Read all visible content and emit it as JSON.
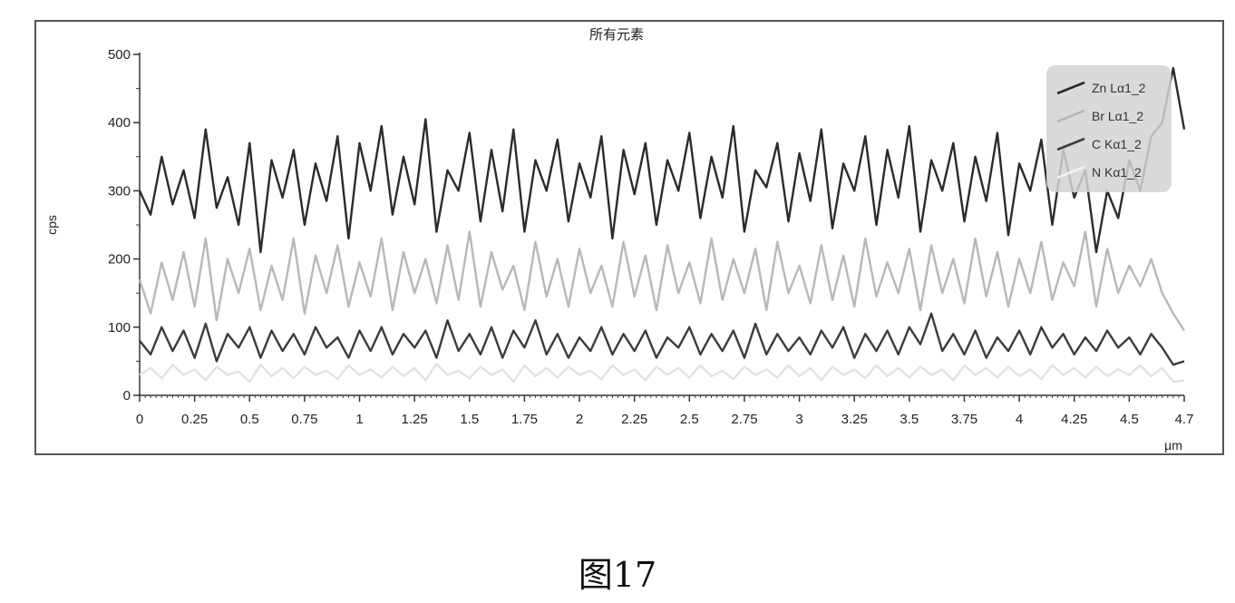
{
  "chart_data": {
    "type": "line",
    "title": "所有元素",
    "xlabel": "µm",
    "ylabel": "cps",
    "xlim": [
      0,
      4.75
    ],
    "ylim": [
      0,
      500
    ],
    "xticks": [
      "0",
      "0.25",
      "0.5",
      "0.75",
      "1",
      "1.25",
      "1.5",
      "1.75",
      "2",
      "2.25",
      "2.5",
      "2.75",
      "3",
      "3.25",
      "3.5",
      "3.75",
      "4",
      "4.25",
      "4.5",
      "4.7"
    ],
    "yticks": [
      "0",
      "100",
      "200",
      "300",
      "400",
      "500"
    ],
    "grid": false,
    "legend_position": "top-right",
    "series": [
      {
        "name": "Zn Lα1_2",
        "color": "#2b2b2b",
        "x": [
          0,
          0.05,
          0.1,
          0.15,
          0.2,
          0.25,
          0.3,
          0.35,
          0.4,
          0.45,
          0.5,
          0.55,
          0.6,
          0.65,
          0.7,
          0.75,
          0.8,
          0.85,
          0.9,
          0.95,
          1,
          1.05,
          1.1,
          1.15,
          1.2,
          1.25,
          1.3,
          1.35,
          1.4,
          1.45,
          1.5,
          1.55,
          1.6,
          1.65,
          1.7,
          1.75,
          1.8,
          1.85,
          1.9,
          1.95,
          2,
          2.05,
          2.1,
          2.15,
          2.2,
          2.25,
          2.3,
          2.35,
          2.4,
          2.45,
          2.5,
          2.55,
          2.6,
          2.65,
          2.7,
          2.75,
          2.8,
          2.85,
          2.9,
          2.95,
          3,
          3.05,
          3.1,
          3.15,
          3.2,
          3.25,
          3.3,
          3.35,
          3.4,
          3.45,
          3.5,
          3.55,
          3.6,
          3.65,
          3.7,
          3.75,
          3.8,
          3.85,
          3.9,
          3.95,
          4,
          4.05,
          4.1,
          4.15,
          4.2,
          4.25,
          4.3,
          4.35,
          4.4,
          4.45,
          4.5,
          4.55,
          4.6,
          4.65,
          4.7,
          4.75
        ],
        "values": [
          300,
          265,
          350,
          280,
          330,
          260,
          390,
          275,
          320,
          250,
          370,
          210,
          345,
          290,
          360,
          250,
          340,
          285,
          380,
          230,
          370,
          300,
          395,
          265,
          350,
          280,
          405,
          240,
          330,
          300,
          385,
          255,
          360,
          270,
          390,
          240,
          345,
          300,
          375,
          255,
          340,
          290,
          380,
          230,
          360,
          295,
          370,
          250,
          345,
          300,
          385,
          260,
          350,
          290,
          395,
          240,
          330,
          305,
          370,
          255,
          355,
          285,
          390,
          245,
          340,
          300,
          380,
          250,
          360,
          290,
          395,
          240,
          345,
          300,
          370,
          255,
          350,
          285,
          385,
          235,
          340,
          300,
          375,
          250,
          360,
          290,
          330,
          210,
          300,
          260,
          345,
          300,
          380,
          400,
          480,
          390
        ]
      },
      {
        "name": "Br Lα1_2",
        "color": "#b8b8b8",
        "x": [
          0,
          0.05,
          0.1,
          0.15,
          0.2,
          0.25,
          0.3,
          0.35,
          0.4,
          0.45,
          0.5,
          0.55,
          0.6,
          0.65,
          0.7,
          0.75,
          0.8,
          0.85,
          0.9,
          0.95,
          1,
          1.05,
          1.1,
          1.15,
          1.2,
          1.25,
          1.3,
          1.35,
          1.4,
          1.45,
          1.5,
          1.55,
          1.6,
          1.65,
          1.7,
          1.75,
          1.8,
          1.85,
          1.9,
          1.95,
          2,
          2.05,
          2.1,
          2.15,
          2.2,
          2.25,
          2.3,
          2.35,
          2.4,
          2.45,
          2.5,
          2.55,
          2.6,
          2.65,
          2.7,
          2.75,
          2.8,
          2.85,
          2.9,
          2.95,
          3,
          3.05,
          3.1,
          3.15,
          3.2,
          3.25,
          3.3,
          3.35,
          3.4,
          3.45,
          3.5,
          3.55,
          3.6,
          3.65,
          3.7,
          3.75,
          3.8,
          3.85,
          3.9,
          3.95,
          4,
          4.05,
          4.1,
          4.15,
          4.2,
          4.25,
          4.3,
          4.35,
          4.4,
          4.45,
          4.5,
          4.55,
          4.6,
          4.65,
          4.7,
          4.75
        ],
        "values": [
          170,
          120,
          195,
          140,
          210,
          130,
          230,
          110,
          200,
          150,
          215,
          125,
          190,
          140,
          230,
          120,
          205,
          150,
          220,
          130,
          195,
          145,
          230,
          125,
          210,
          150,
          200,
          135,
          220,
          140,
          240,
          130,
          210,
          155,
          190,
          125,
          225,
          145,
          200,
          130,
          215,
          150,
          190,
          130,
          225,
          145,
          205,
          125,
          220,
          150,
          195,
          135,
          230,
          140,
          200,
          150,
          215,
          125,
          225,
          150,
          190,
          135,
          220,
          140,
          205,
          130,
          230,
          145,
          195,
          150,
          215,
          125,
          220,
          150,
          200,
          135,
          230,
          145,
          210,
          130,
          200,
          150,
          225,
          140,
          195,
          160,
          240,
          130,
          215,
          150,
          190,
          160,
          200,
          150,
          120,
          95
        ]
      },
      {
        "name": "C Kα1_2",
        "color": "#3c3c3c",
        "x": [
          0,
          0.05,
          0.1,
          0.15,
          0.2,
          0.25,
          0.3,
          0.35,
          0.4,
          0.45,
          0.5,
          0.55,
          0.6,
          0.65,
          0.7,
          0.75,
          0.8,
          0.85,
          0.9,
          0.95,
          1,
          1.05,
          1.1,
          1.15,
          1.2,
          1.25,
          1.3,
          1.35,
          1.4,
          1.45,
          1.5,
          1.55,
          1.6,
          1.65,
          1.7,
          1.75,
          1.8,
          1.85,
          1.9,
          1.95,
          2,
          2.05,
          2.1,
          2.15,
          2.2,
          2.25,
          2.3,
          2.35,
          2.4,
          2.45,
          2.5,
          2.55,
          2.6,
          2.65,
          2.7,
          2.75,
          2.8,
          2.85,
          2.9,
          2.95,
          3,
          3.05,
          3.1,
          3.15,
          3.2,
          3.25,
          3.3,
          3.35,
          3.4,
          3.45,
          3.5,
          3.55,
          3.6,
          3.65,
          3.7,
          3.75,
          3.8,
          3.85,
          3.9,
          3.95,
          4,
          4.05,
          4.1,
          4.15,
          4.2,
          4.25,
          4.3,
          4.35,
          4.4,
          4.45,
          4.5,
          4.55,
          4.6,
          4.65,
          4.7,
          4.75
        ],
        "values": [
          80,
          60,
          100,
          65,
          95,
          55,
          105,
          50,
          90,
          70,
          100,
          55,
          95,
          65,
          90,
          60,
          100,
          70,
          85,
          55,
          95,
          65,
          100,
          60,
          90,
          70,
          95,
          55,
          110,
          65,
          90,
          60,
          100,
          55,
          95,
          70,
          110,
          60,
          90,
          55,
          85,
          65,
          100,
          60,
          90,
          65,
          95,
          55,
          85,
          70,
          100,
          60,
          90,
          65,
          95,
          55,
          105,
          60,
          90,
          65,
          85,
          60,
          95,
          70,
          100,
          55,
          90,
          65,
          95,
          60,
          100,
          75,
          120,
          65,
          90,
          60,
          95,
          55,
          85,
          65,
          95,
          60,
          100,
          70,
          90,
          60,
          85,
          65,
          95,
          70,
          85,
          60,
          90,
          70,
          45,
          50
        ]
      },
      {
        "name": "N Kα1_2",
        "color": "#e2e2e2",
        "x": [
          0,
          0.05,
          0.1,
          0.15,
          0.2,
          0.25,
          0.3,
          0.35,
          0.4,
          0.45,
          0.5,
          0.55,
          0.6,
          0.65,
          0.7,
          0.75,
          0.8,
          0.85,
          0.9,
          0.95,
          1,
          1.05,
          1.1,
          1.15,
          1.2,
          1.25,
          1.3,
          1.35,
          1.4,
          1.45,
          1.5,
          1.55,
          1.6,
          1.65,
          1.7,
          1.75,
          1.8,
          1.85,
          1.9,
          1.95,
          2,
          2.05,
          2.1,
          2.15,
          2.2,
          2.25,
          2.3,
          2.35,
          2.4,
          2.45,
          2.5,
          2.55,
          2.6,
          2.65,
          2.7,
          2.75,
          2.8,
          2.85,
          2.9,
          2.95,
          3,
          3.05,
          3.1,
          3.15,
          3.2,
          3.25,
          3.3,
          3.35,
          3.4,
          3.45,
          3.5,
          3.55,
          3.6,
          3.65,
          3.7,
          3.75,
          3.8,
          3.85,
          3.9,
          3.95,
          4,
          4.05,
          4.1,
          4.15,
          4.2,
          4.25,
          4.3,
          4.35,
          4.4,
          4.45,
          4.5,
          4.55,
          4.6,
          4.65,
          4.7,
          4.75
        ],
        "values": [
          30,
          40,
          25,
          45,
          30,
          38,
          22,
          42,
          30,
          35,
          20,
          45,
          28,
          40,
          25,
          42,
          30,
          36,
          24,
          44,
          30,
          38,
          26,
          42,
          28,
          40,
          22,
          46,
          30,
          36,
          25,
          42,
          30,
          38,
          20,
          44,
          28,
          40,
          26,
          42,
          30,
          36,
          24,
          44,
          30,
          38,
          22,
          42,
          30,
          40,
          26,
          44,
          28,
          36,
          24,
          42,
          30,
          38,
          26,
          44,
          28,
          40,
          22,
          42,
          30,
          38,
          25,
          44,
          28,
          40,
          26,
          42,
          30,
          38,
          22,
          44,
          30,
          40,
          26,
          42,
          28,
          38,
          24,
          44,
          30,
          40,
          26,
          42,
          28,
          38,
          30,
          44,
          28,
          40,
          20,
          22
        ]
      }
    ]
  },
  "caption": "图17"
}
